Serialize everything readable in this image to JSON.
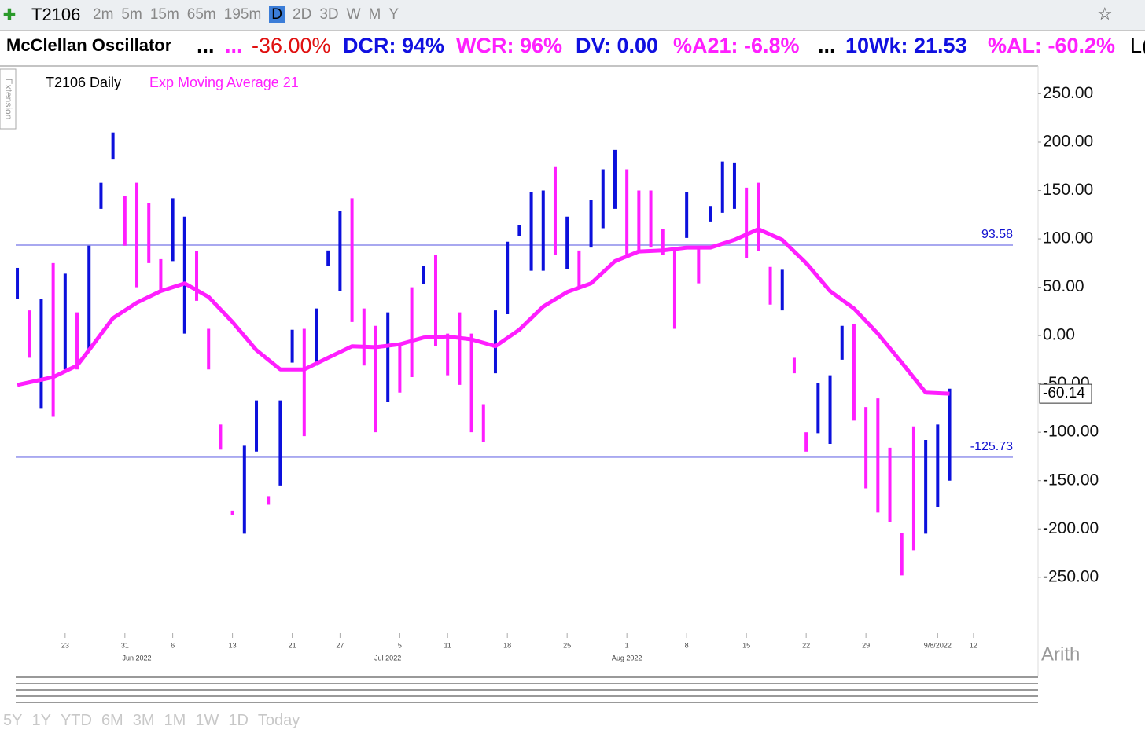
{
  "toolbar": {
    "symbol": "T2106",
    "timeframes": [
      "2m",
      "5m",
      "15m",
      "65m",
      "195m",
      "D",
      "2D",
      "3D",
      "W",
      "M",
      "Y"
    ]
  },
  "header": {
    "name": "McClellan Oscillator",
    "items": [
      "...",
      "...",
      "-36.00%",
      "DCR: 94%",
      "WCR: 96%",
      "DV: 0.00",
      "%A21: -6.8%",
      "...",
      "10Wk: 21.53",
      "%AL: -60.2%",
      "L("
    ]
  },
  "side_tab": "Extension",
  "scale_mode": "Arith",
  "ranges": [
    "5Y",
    "1Y",
    "YTD",
    "6M",
    "3M",
    "1M",
    "1W",
    "1D",
    "Today"
  ],
  "chart_data": {
    "type": "ohlc",
    "legend": [
      "T2106 Daily",
      "Exp Moving Average 21"
    ],
    "high": [
      70,
      26,
      38,
      75,
      64,
      24,
      93,
      158,
      210,
      144,
      158,
      137,
      79,
      142,
      123,
      87,
      7,
      -92,
      -181,
      -114,
      -67,
      -166,
      -67,
      6,
      7,
      28,
      88,
      129,
      142,
      28,
      10,
      24,
      -11,
      50,
      72,
      83,
      2,
      24,
      2,
      -71,
      26,
      97,
      114,
      148,
      150,
      175,
      123,
      88,
      140,
      172,
      192,
      172,
      150,
      150,
      110,
      91,
      148,
      91,
      134,
      180,
      179,
      153,
      158,
      71,
      68,
      -23,
      -100,
      -49,
      -41,
      10,
      12,
      -74,
      -65,
      -116,
      -204,
      -94,
      -108,
      -92,
      -55
    ],
    "low": [
      38,
      -23,
      -75,
      -84,
      -35,
      -35,
      -15,
      131,
      182,
      93,
      50,
      75,
      45,
      77,
      2,
      36,
      -35,
      -118,
      -186,
      -205,
      -120,
      -175,
      -155,
      -28,
      -104,
      -31,
      72,
      46,
      14,
      -31,
      -100,
      -69,
      -59,
      -43,
      53,
      -11,
      -41,
      -51,
      -100,
      -110,
      -39,
      22,
      103,
      67,
      67,
      83,
      69,
      50,
      91,
      111,
      131,
      83,
      85,
      91,
      83,
      7,
      101,
      54,
      118,
      127,
      131,
      80,
      87,
      32,
      26,
      -39,
      -120,
      -101,
      -112,
      -25,
      -88,
      -158,
      -183,
      -193,
      -248,
      -222,
      -205,
      -177,
      -150
    ],
    "up": [
      true,
      false,
      true,
      false,
      true,
      false,
      true,
      true,
      true,
      false,
      false,
      false,
      false,
      true,
      true,
      false,
      false,
      false,
      false,
      true,
      true,
      false,
      true,
      true,
      false,
      true,
      true,
      true,
      false,
      false,
      false,
      true,
      false,
      false,
      true,
      false,
      false,
      false,
      false,
      false,
      true,
      true,
      true,
      true,
      true,
      false,
      true,
      false,
      true,
      true,
      true,
      false,
      false,
      false,
      false,
      false,
      true,
      false,
      true,
      true,
      true,
      false,
      false,
      false,
      true,
      false,
      false,
      true,
      true,
      true,
      false,
      false,
      false,
      false,
      false,
      false,
      true,
      true,
      true
    ],
    "up_color": "#0c10dc",
    "down_color": "#ff1eff",
    "ema": {
      "x": [
        0,
        3,
        5,
        6,
        8,
        10,
        12,
        14,
        16,
        18,
        20,
        22,
        24,
        26,
        28,
        30,
        32,
        34,
        36,
        38,
        40,
        42,
        44,
        46,
        48,
        50,
        52,
        54,
        56,
        58,
        60,
        62,
        64,
        66,
        68,
        70,
        72,
        74,
        76,
        78
      ],
      "values": [
        -51,
        -43,
        -31,
        -15,
        18,
        34,
        46,
        54,
        40,
        14,
        -15,
        -35,
        -35,
        -23,
        -11,
        -12,
        -9,
        -2,
        -1,
        -4,
        -11,
        6,
        30,
        45,
        54,
        77,
        87,
        88,
        91,
        91,
        99,
        110,
        99,
        75,
        46,
        28,
        2,
        -28,
        -59,
        -60.14
      ],
      "color": "#ff1eff"
    },
    "hlines": [
      93.58,
      -125.73
    ],
    "last_value": -60.14,
    "xlim": [
      -1.45,
      85.4
    ],
    "ylim": [
      -303,
      278
    ],
    "yticks": [
      {
        "value": 250,
        "label": "250.00"
      },
      {
        "value": 200,
        "label": "200.00"
      },
      {
        "value": 150,
        "label": "150.00"
      },
      {
        "value": 100,
        "label": "100.00"
      },
      {
        "value": 50,
        "label": "50.00"
      },
      {
        "value": 0,
        "label": "0.00"
      },
      {
        "value": -50,
        "label": "-50.00"
      },
      {
        "value": -100,
        "label": "-100.00"
      },
      {
        "value": -150,
        "label": "-150.00"
      },
      {
        "value": -200,
        "label": "-200.00"
      },
      {
        "value": -250,
        "label": "-250.00"
      }
    ],
    "xticks": [
      {
        "value": 4,
        "label": "23"
      },
      {
        "value": 9,
        "label": "31"
      },
      {
        "value": 13,
        "label": "6"
      },
      {
        "value": 18,
        "label": "13"
      },
      {
        "value": 23,
        "label": "21"
      },
      {
        "value": 27,
        "label": "27"
      },
      {
        "value": 32,
        "label": "5"
      },
      {
        "value": 36,
        "label": "11"
      },
      {
        "value": 41,
        "label": "18"
      },
      {
        "value": 46,
        "label": "25"
      },
      {
        "value": 51,
        "label": "1"
      },
      {
        "value": 56,
        "label": "8"
      },
      {
        "value": 61,
        "label": "15"
      },
      {
        "value": 66,
        "label": "22"
      },
      {
        "value": 71,
        "label": "29"
      },
      {
        "value": 77,
        "label": "9/8/2022"
      },
      {
        "value": 80,
        "label": "12"
      }
    ],
    "month_ticks": [
      {
        "value": 10,
        "label": "Jun 2022"
      },
      {
        "value": 31,
        "label": "Jul 2022"
      },
      {
        "value": 51,
        "label": "Aug 2022"
      }
    ]
  }
}
